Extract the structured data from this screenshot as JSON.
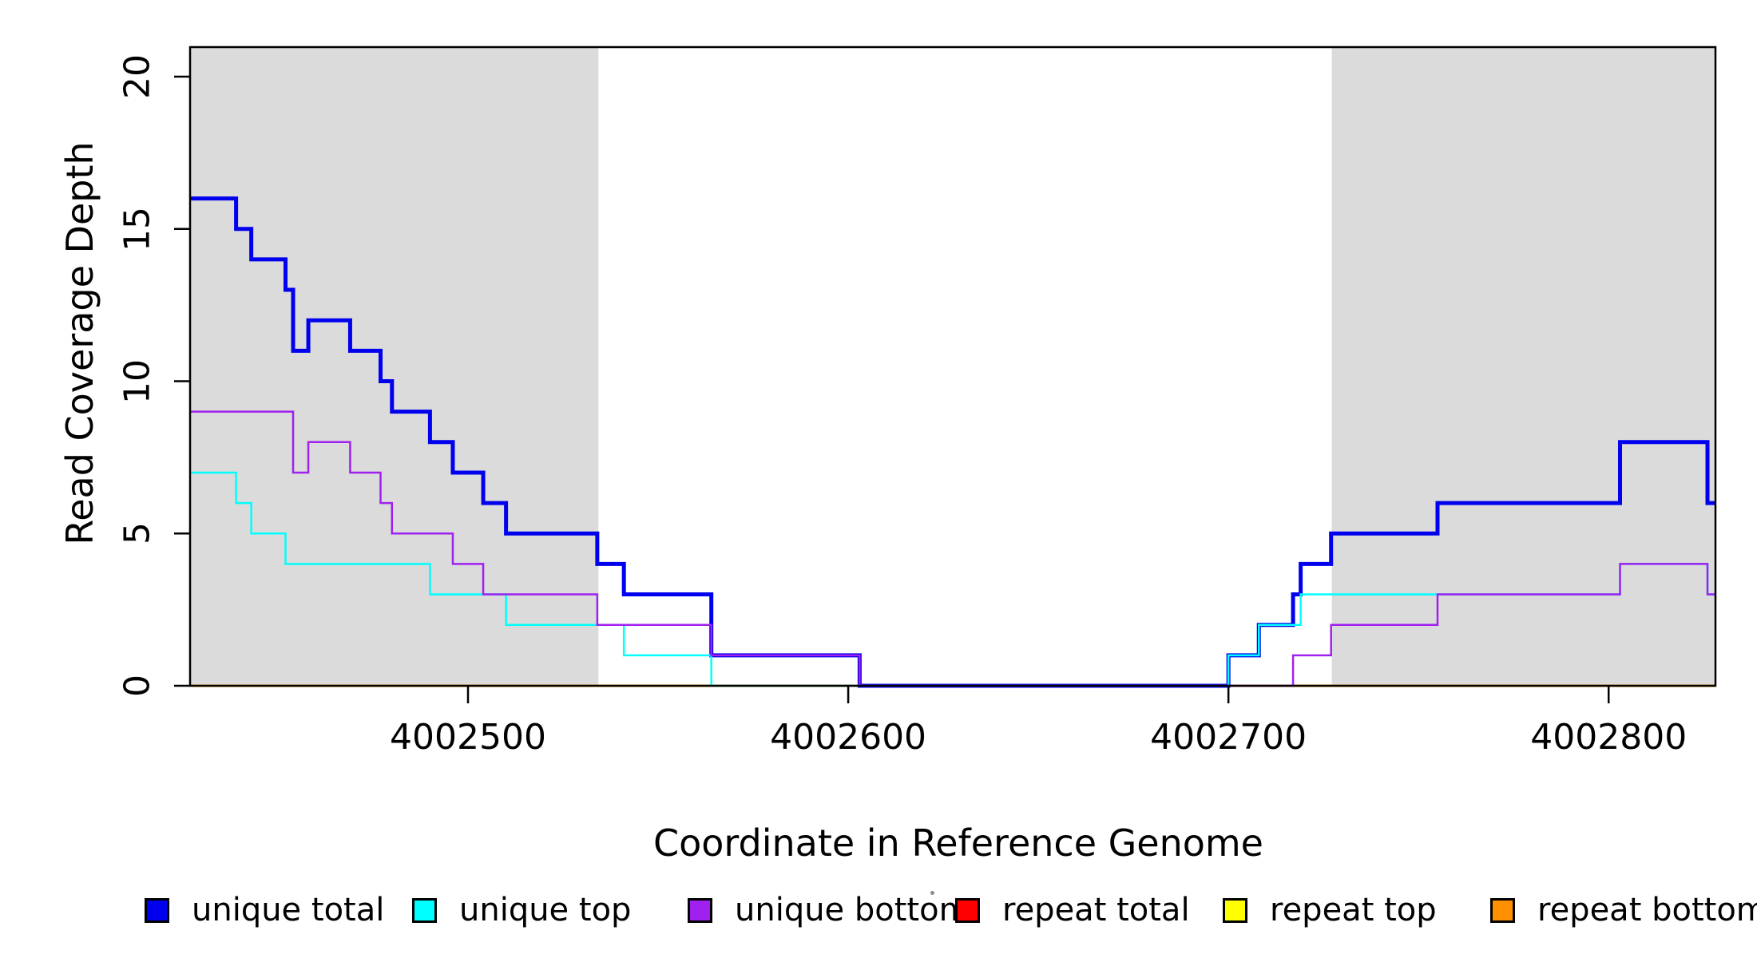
{
  "chart_data": {
    "type": "line",
    "subtype": "step-coverage-plot",
    "title": "",
    "xlabel": "Coordinate in Reference Genome",
    "ylabel": "Read Coverage Depth",
    "xlim": [
      4002426.9,
      4002828.1
    ],
    "ylim": [
      0,
      20.97
    ],
    "grid": false,
    "x_ticks": [
      4002500,
      4002600,
      4002700,
      4002800
    ],
    "x_tick_labels": [
      "4002500",
      "4002600",
      "4002700",
      "4002800"
    ],
    "y_ticks": [
      0,
      5,
      10,
      15,
      20
    ],
    "y_tick_labels": [
      "0",
      "5",
      "10",
      "15",
      "20"
    ],
    "highlight_regions": {
      "color": "#dbdbdb",
      "ranges": [
        [
          4002426.9,
          4002534.3
        ],
        [
          4002727.2,
          4002828.1
        ]
      ]
    },
    "series": [
      {
        "name": "repeat total",
        "color": "#ff0000",
        "line_width": 2.5,
        "steps": [
          [
            4002426.9,
            0
          ]
        ]
      },
      {
        "name": "repeat top",
        "color": "#ffff00",
        "line_width": 2.5,
        "steps": [
          [
            4002426.9,
            0
          ]
        ]
      },
      {
        "name": "repeat bottom",
        "color": "#ff9100",
        "line_width": 3,
        "steps": [
          [
            4002426.9,
            0
          ]
        ]
      },
      {
        "name": "unique total",
        "color": "#0000ee",
        "line_width": 5,
        "steps": [
          [
            4002426.9,
            16
          ],
          [
            4002439,
            15
          ],
          [
            4002443,
            14
          ],
          [
            4002452,
            13
          ],
          [
            4002454,
            11
          ],
          [
            4002458,
            12
          ],
          [
            4002469,
            11
          ],
          [
            4002477,
            10
          ],
          [
            4002480,
            9
          ],
          [
            4002490,
            8
          ],
          [
            4002496,
            7
          ],
          [
            4002504,
            6
          ],
          [
            4002510,
            5
          ],
          [
            4002534,
            4
          ],
          [
            4002541,
            3
          ],
          [
            4002564,
            1
          ],
          [
            4002603,
            0
          ],
          [
            4002700,
            1
          ],
          [
            4002708,
            2
          ],
          [
            4002717,
            3
          ],
          [
            4002719,
            4
          ],
          [
            4002727,
            5
          ],
          [
            4002755,
            6
          ],
          [
            4002803,
            8
          ],
          [
            4002826,
            6
          ]
        ]
      },
      {
        "name": "unique top",
        "color": "#00ffff",
        "line_width": 2.5,
        "steps": [
          [
            4002426.9,
            7
          ],
          [
            4002439,
            6
          ],
          [
            4002443,
            5
          ],
          [
            4002452,
            4
          ],
          [
            4002490,
            3
          ],
          [
            4002510,
            2
          ],
          [
            4002541,
            1
          ],
          [
            4002564,
            0
          ],
          [
            4002700,
            1
          ],
          [
            4002708,
            2
          ],
          [
            4002719,
            3
          ],
          [
            4002803,
            4
          ],
          [
            4002826,
            3
          ]
        ]
      },
      {
        "name": "unique bottom",
        "color": "#a020f0",
        "line_width": 2.5,
        "steps": [
          [
            4002426.9,
            9
          ],
          [
            4002454,
            7
          ],
          [
            4002458,
            8
          ],
          [
            4002469,
            7
          ],
          [
            4002477,
            6
          ],
          [
            4002480,
            5
          ],
          [
            4002496,
            4
          ],
          [
            4002504,
            3
          ],
          [
            4002534,
            2
          ],
          [
            4002564,
            1
          ],
          [
            4002603,
            0
          ],
          [
            4002717,
            1
          ],
          [
            4002727,
            2
          ],
          [
            4002755,
            3
          ],
          [
            4002803,
            4
          ],
          [
            4002826,
            3
          ]
        ]
      }
    ],
    "legend": {
      "position": "bottom",
      "items": [
        {
          "label": "unique total",
          "color": "#0000ee"
        },
        {
          "label": "unique top",
          "color": "#00ffff"
        },
        {
          "label": "unique bottom",
          "color": "#a020f0"
        },
        {
          "label": "repeat total",
          "color": "#ff0000"
        },
        {
          "label": "repeat top",
          "color": "#ffff00"
        },
        {
          "label": "repeat bottom",
          "color": "#ff9100"
        }
      ]
    }
  }
}
